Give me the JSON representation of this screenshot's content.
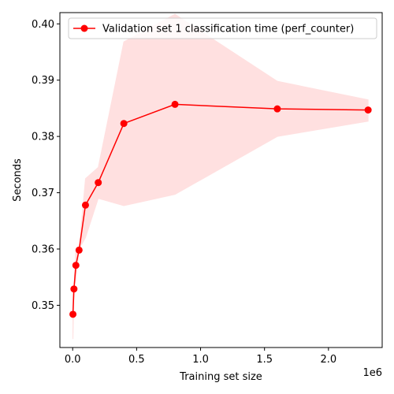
{
  "chart_data": {
    "type": "line",
    "xlabel": "Training set size",
    "ylabel": "Seconds",
    "x_offset_label": "1e6",
    "xlim": [
      -100000,
      2420000
    ],
    "ylim": [
      0.3425,
      0.402
    ],
    "x_ticks": [
      {
        "value": 0,
        "label": "0.0"
      },
      {
        "value": 500000,
        "label": "0.5"
      },
      {
        "value": 1000000,
        "label": "1.0"
      },
      {
        "value": 1500000,
        "label": "1.5"
      },
      {
        "value": 2000000,
        "label": "2.0"
      }
    ],
    "y_ticks": [
      {
        "value": 0.35,
        "label": "0.35"
      },
      {
        "value": 0.36,
        "label": "0.36"
      },
      {
        "value": 0.37,
        "label": "0.37"
      },
      {
        "value": 0.38,
        "label": "0.38"
      },
      {
        "value": 0.39,
        "label": "0.39"
      },
      {
        "value": 0.4,
        "label": "0.40"
      }
    ],
    "legend_position": "upper right",
    "grid": false,
    "series": [
      {
        "name": "Validation set 1 classification time (perf_counter)",
        "color": "#ff0000",
        "band_color": "#ffe0e0",
        "x": [
          2000,
          10000,
          25000,
          50000,
          100000,
          200000,
          400000,
          800000,
          1600000,
          2310000
        ],
        "y": [
          0.3484,
          0.3529,
          0.3571,
          0.3598,
          0.3678,
          0.3718,
          0.3823,
          0.3857,
          0.3849,
          0.3847
        ],
        "y_lower": [
          0.344,
          0.353,
          0.3545,
          0.36,
          0.362,
          0.369,
          0.3677,
          0.3697,
          0.38,
          0.3827
        ],
        "y_upper": [
          0.3525,
          0.3531,
          0.36,
          0.36,
          0.3725,
          0.3745,
          0.3968,
          0.4017,
          0.3898,
          0.3865
        ]
      }
    ]
  }
}
